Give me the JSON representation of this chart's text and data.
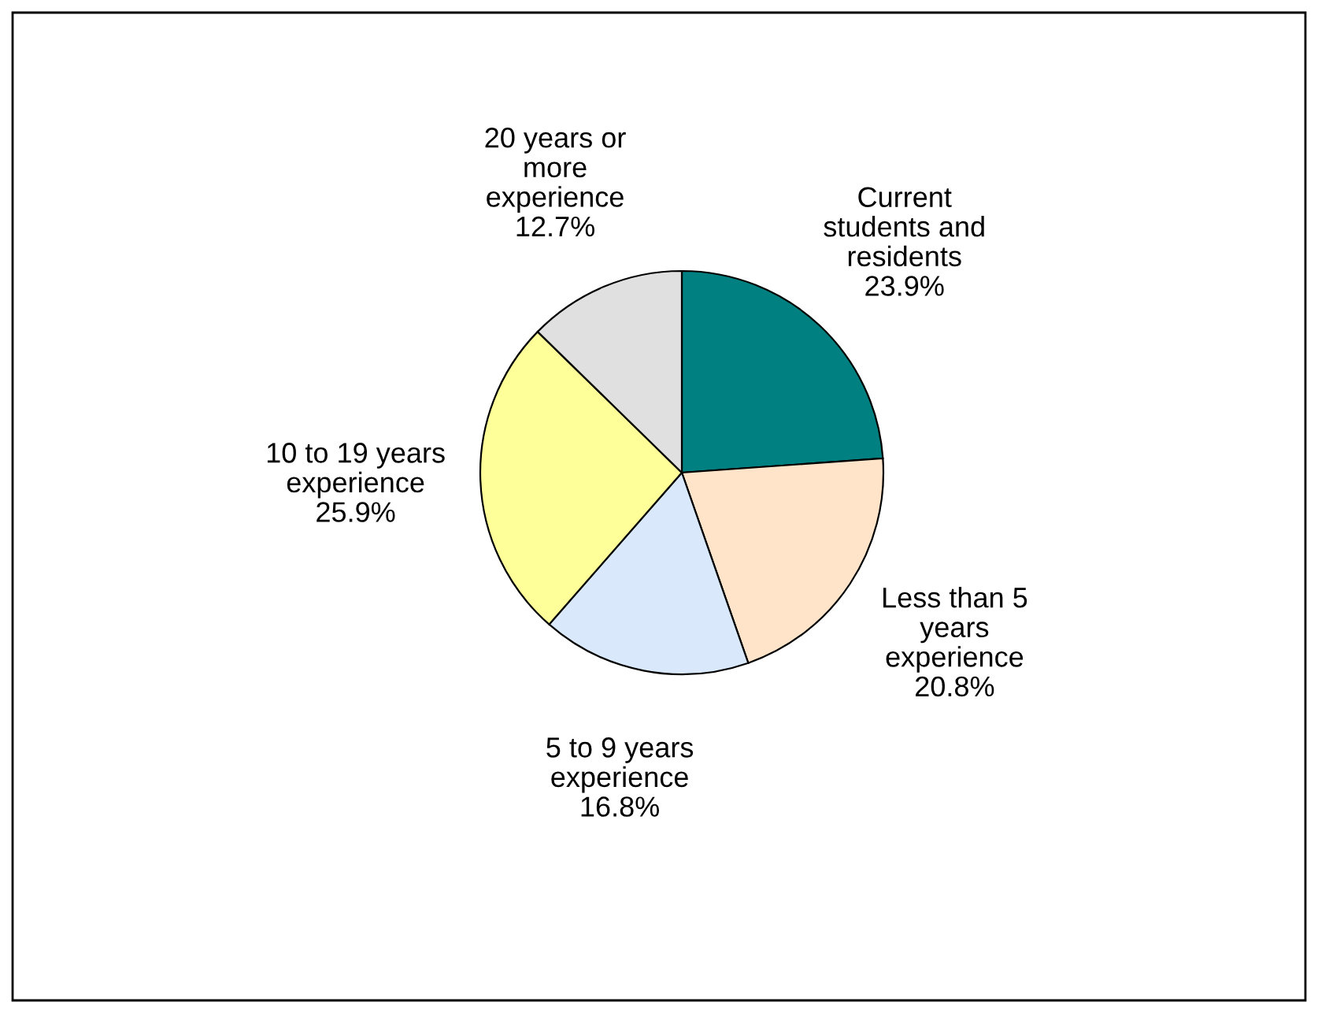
{
  "chart_data": {
    "type": "pie",
    "categories": [
      "Current\nstudents and\nresidents",
      "Less than 5\nyears\nexperience",
      "5 to 9 years\nexperience",
      "10 to 19 years\nexperience",
      "20 years or\nmore\nexperience"
    ],
    "values": [
      23.9,
      20.8,
      16.8,
      25.9,
      12.7
    ],
    "value_labels": [
      "23.9%",
      "20.8%",
      "16.8%",
      "25.9%",
      "12.7%"
    ],
    "colors": [
      "#008080",
      "#ffe4c9",
      "#d9e8fb",
      "#ffff99",
      "#e0e0e0"
    ],
    "legend": false
  }
}
